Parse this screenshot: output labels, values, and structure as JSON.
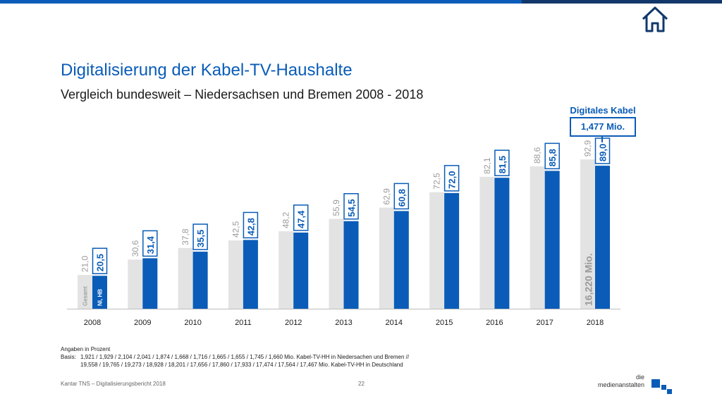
{
  "header": {
    "title": "Digitalisierung der Kabel-TV-Haushalte",
    "subtitle": "Vergleich bundesweit – Niedersachsen und Bremen 2008 - 2018"
  },
  "callout": {
    "label": "Digitales Kabel",
    "value": "1,477 Mio."
  },
  "chart_data": {
    "type": "bar",
    "categories": [
      "2008",
      "2009",
      "2010",
      "2011",
      "2012",
      "2013",
      "2014",
      "2015",
      "2016",
      "2017",
      "2018"
    ],
    "series": [
      {
        "name": "Gesamt",
        "values": [
          21.0,
          30.6,
          37.8,
          42.5,
          48.2,
          55.9,
          62.9,
          72.5,
          82.1,
          88.6,
          92.9
        ],
        "labels": [
          "21,0",
          "30,6",
          "37,8",
          "42,5",
          "48,2",
          "55,9",
          "62,9",
          "72,5",
          "82,1",
          "88,6",
          "92,9"
        ],
        "color": "#e3e3e3",
        "label_color": "#9a9a9a"
      },
      {
        "name": "NI, HB",
        "values": [
          20.5,
          31.4,
          35.5,
          42.8,
          47.4,
          54.5,
          60.8,
          72.0,
          81.5,
          85.8,
          89.0
        ],
        "labels": [
          "20,5",
          "31,4",
          "35,5",
          "42,8",
          "47,4",
          "54,5",
          "60,8",
          "72,0",
          "81,5",
          "85,8",
          "89,0"
        ],
        "color": "#0a5cb8",
        "label_color": "#0a5cb8"
      }
    ],
    "inside_label": "16,220 Mio.",
    "ylim": [
      0,
      100
    ],
    "unit": "Angaben in Prozent"
  },
  "notes": {
    "unit": "Angaben in Prozent",
    "basis_label": "Basis:",
    "basis_line1": "1,921 / 1,929 / 2,104 / 2,041 / 1,874 / 1,668 / 1,716 / 1,665 / 1,655 / 1,745 / 1,660 Mio. Kabel-TV-HH in Niedersachen und Bremen //",
    "basis_line2": "19,558 / 19,765 / 19,273 / 18,928 / 18,201 / 17,656 / 17,860 / 17,933 / 17,474 / 17,564 / 17,467 Mio. Kabel-TV-HH in Deutschland"
  },
  "footer": {
    "source": "Kantar TNS – Digitalisierungsbericht 2018",
    "page": "22",
    "logo_line1": "die",
    "logo_line2": "medienanstalten"
  },
  "icons": {
    "home": "home-icon"
  },
  "colors": {
    "accent": "#0a5cb8",
    "dark_bar": "#12386b",
    "gray_bar": "#e3e3e3"
  }
}
